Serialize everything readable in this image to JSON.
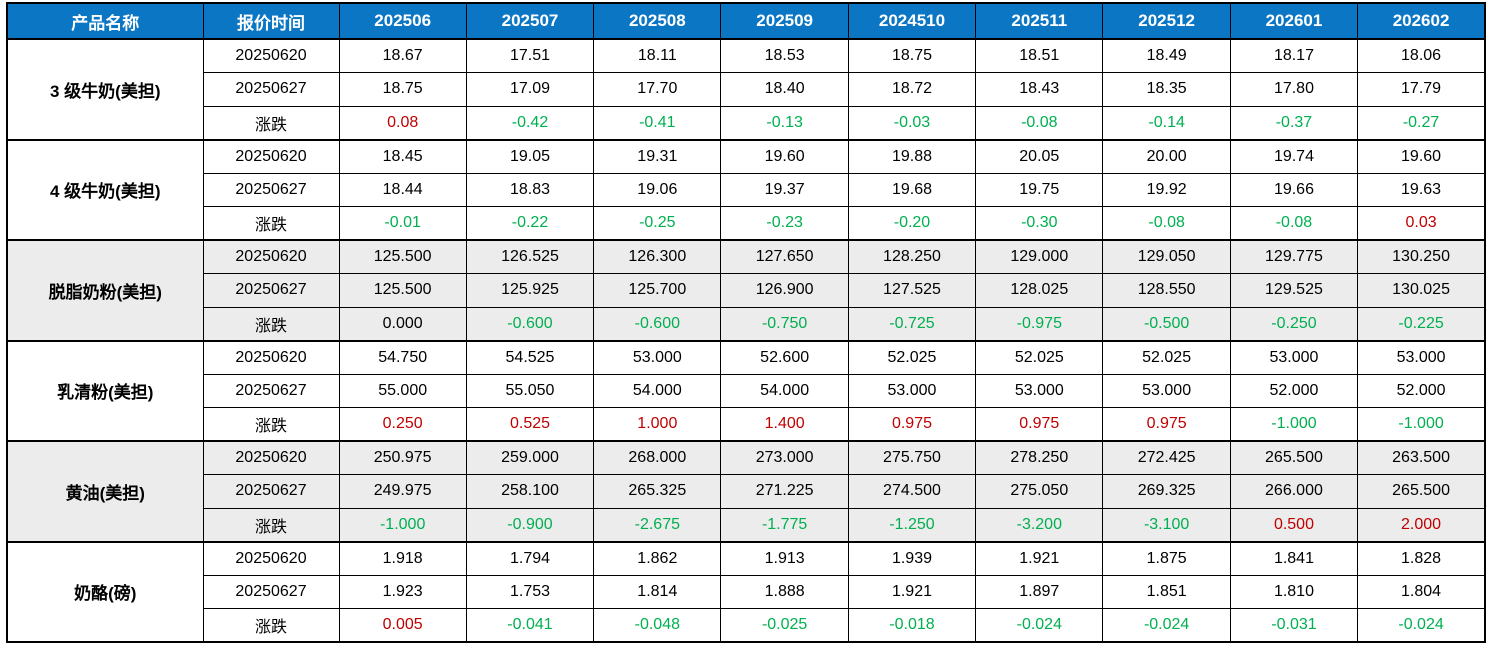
{
  "colors": {
    "header_bg": "#0b76c4",
    "header_text": "#ffffff",
    "positive": "#c00000",
    "negative": "#00b050",
    "neutral": "#000000",
    "shaded_row_bg": "#ececec",
    "border": "#000000",
    "page_bg": "#ffffff"
  },
  "table": {
    "header": {
      "product_label": "产品名称",
      "time_label": "报价时间",
      "months": [
        "202506",
        "202507",
        "202508",
        "202509",
        "2024510",
        "202511",
        "202512",
        "202601",
        "202602"
      ]
    },
    "groups": [
      {
        "product": "3 级牛奶(美担)",
        "shaded": false,
        "rows": [
          {
            "time": "20250620",
            "type": "price",
            "values": [
              "18.67",
              "17.51",
              "18.11",
              "18.53",
              "18.75",
              "18.51",
              "18.49",
              "18.17",
              "18.06"
            ]
          },
          {
            "time": "20250627",
            "type": "price",
            "values": [
              "18.75",
              "17.09",
              "17.70",
              "18.40",
              "18.72",
              "18.43",
              "18.35",
              "17.80",
              "17.79"
            ]
          },
          {
            "time": "涨跌",
            "type": "change",
            "values": [
              "0.08",
              "-0.42",
              "-0.41",
              "-0.13",
              "-0.03",
              "-0.08",
              "-0.14",
              "-0.37",
              "-0.27"
            ]
          }
        ]
      },
      {
        "product": "4 级牛奶(美担)",
        "shaded": false,
        "rows": [
          {
            "time": "20250620",
            "type": "price",
            "values": [
              "18.45",
              "19.05",
              "19.31",
              "19.60",
              "19.88",
              "20.05",
              "20.00",
              "19.74",
              "19.60"
            ]
          },
          {
            "time": "20250627",
            "type": "price",
            "values": [
              "18.44",
              "18.83",
              "19.06",
              "19.37",
              "19.68",
              "19.75",
              "19.92",
              "19.66",
              "19.63"
            ]
          },
          {
            "time": "涨跌",
            "type": "change",
            "values": [
              "-0.01",
              "-0.22",
              "-0.25",
              "-0.23",
              "-0.20",
              "-0.30",
              "-0.08",
              "-0.08",
              "0.03"
            ]
          }
        ]
      },
      {
        "product": "脱脂奶粉(美担)",
        "shaded": true,
        "rows": [
          {
            "time": "20250620",
            "type": "price",
            "values": [
              "125.500",
              "126.525",
              "126.300",
              "127.650",
              "128.250",
              "129.000",
              "129.050",
              "129.775",
              "130.250"
            ]
          },
          {
            "time": "20250627",
            "type": "price",
            "values": [
              "125.500",
              "125.925",
              "125.700",
              "126.900",
              "127.525",
              "128.025",
              "128.550",
              "129.525",
              "130.025"
            ]
          },
          {
            "time": "涨跌",
            "type": "change",
            "values": [
              "0.000",
              "-0.600",
              "-0.600",
              "-0.750",
              "-0.725",
              "-0.975",
              "-0.500",
              "-0.250",
              "-0.225"
            ]
          }
        ]
      },
      {
        "product": "乳清粉(美担)",
        "shaded": false,
        "rows": [
          {
            "time": "20250620",
            "type": "price",
            "values": [
              "54.750",
              "54.525",
              "53.000",
              "52.600",
              "52.025",
              "52.025",
              "52.025",
              "53.000",
              "53.000"
            ]
          },
          {
            "time": "20250627",
            "type": "price",
            "values": [
              "55.000",
              "55.050",
              "54.000",
              "54.000",
              "53.000",
              "53.000",
              "53.000",
              "52.000",
              "52.000"
            ]
          },
          {
            "time": "涨跌",
            "type": "change",
            "values": [
              "0.250",
              "0.525",
              "1.000",
              "1.400",
              "0.975",
              "0.975",
              "0.975",
              "-1.000",
              "-1.000"
            ]
          }
        ]
      },
      {
        "product": "黄油(美担)",
        "shaded": true,
        "rows": [
          {
            "time": "20250620",
            "type": "price",
            "values": [
              "250.975",
              "259.000",
              "268.000",
              "273.000",
              "275.750",
              "278.250",
              "272.425",
              "265.500",
              "263.500"
            ]
          },
          {
            "time": "20250627",
            "type": "price",
            "values": [
              "249.975",
              "258.100",
              "265.325",
              "271.225",
              "274.500",
              "275.050",
              "269.325",
              "266.000",
              "265.500"
            ]
          },
          {
            "time": "涨跌",
            "type": "change",
            "values": [
              "-1.000",
              "-0.900",
              "-2.675",
              "-1.775",
              "-1.250",
              "-3.200",
              "-3.100",
              "0.500",
              "2.000"
            ]
          }
        ]
      },
      {
        "product": "奶酪(磅)",
        "shaded": false,
        "rows": [
          {
            "time": "20250620",
            "type": "price",
            "values": [
              "1.918",
              "1.794",
              "1.862",
              "1.913",
              "1.939",
              "1.921",
              "1.875",
              "1.841",
              "1.828"
            ]
          },
          {
            "time": "20250627",
            "type": "price",
            "values": [
              "1.923",
              "1.753",
              "1.814",
              "1.888",
              "1.921",
              "1.897",
              "1.851",
              "1.810",
              "1.804"
            ]
          },
          {
            "time": "涨跌",
            "type": "change",
            "values": [
              "0.005",
              "-0.041",
              "-0.048",
              "-0.025",
              "-0.018",
              "-0.024",
              "-0.024",
              "-0.031",
              "-0.024"
            ]
          }
        ]
      }
    ]
  }
}
